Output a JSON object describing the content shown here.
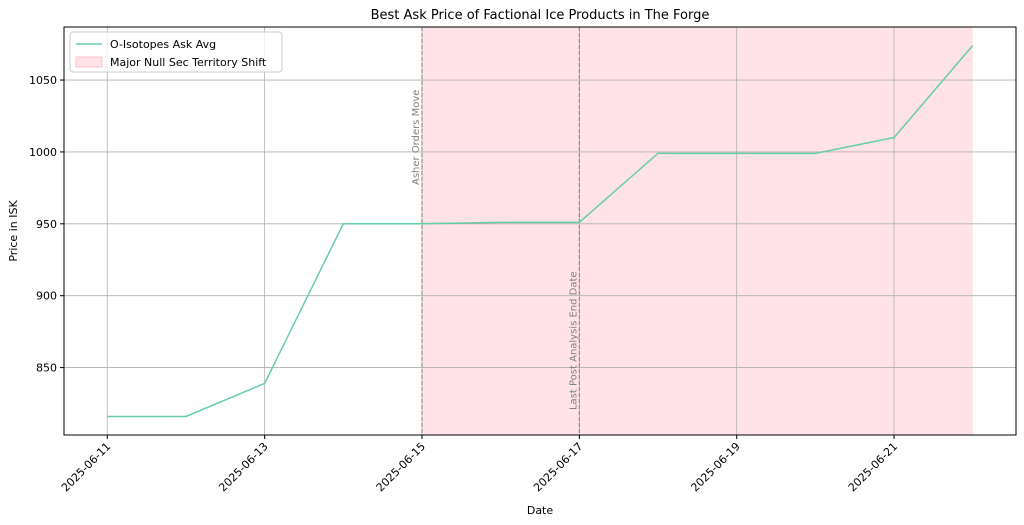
{
  "chart_data": {
    "type": "line",
    "title": "Best Ask Price of Factional Ice Products in The Forge",
    "x_label": "Date",
    "y_label": "Price in ISK",
    "x": [
      "2025-06-11",
      "2025-06-12",
      "2025-06-13",
      "2025-06-14",
      "2025-06-15",
      "2025-06-16",
      "2025-06-17",
      "2025-06-18",
      "2025-06-19",
      "2025-06-20",
      "2025-06-21",
      "2025-06-22"
    ],
    "series": [
      {
        "name": "O-Isotopes Ask Avg",
        "color": "#66cdaa",
        "values": [
          816,
          816,
          839,
          950,
          950,
          951,
          951,
          999,
          999,
          999,
          1010,
          1074
        ]
      }
    ],
    "xticks": [
      "2025-06-11",
      "2025-06-13",
      "2025-06-15",
      "2025-06-17",
      "2025-06-19",
      "2025-06-21"
    ],
    "ylim": [
      803.1,
      1086.9
    ],
    "yticks": [
      850,
      900,
      950,
      1000,
      1050
    ],
    "grid": true,
    "legend": "upper left",
    "shaded_regions": [
      {
        "name": "Major Null Sec Territory Shift",
        "start": "2025-06-15",
        "end": "2025-06-22",
        "color": "#ffc0cb"
      }
    ],
    "vlines": [
      {
        "x": "2025-06-15",
        "label": "Asher Orders Move"
      },
      {
        "x": "2025-06-17",
        "label": "Last Post Analysis End Date"
      }
    ]
  }
}
